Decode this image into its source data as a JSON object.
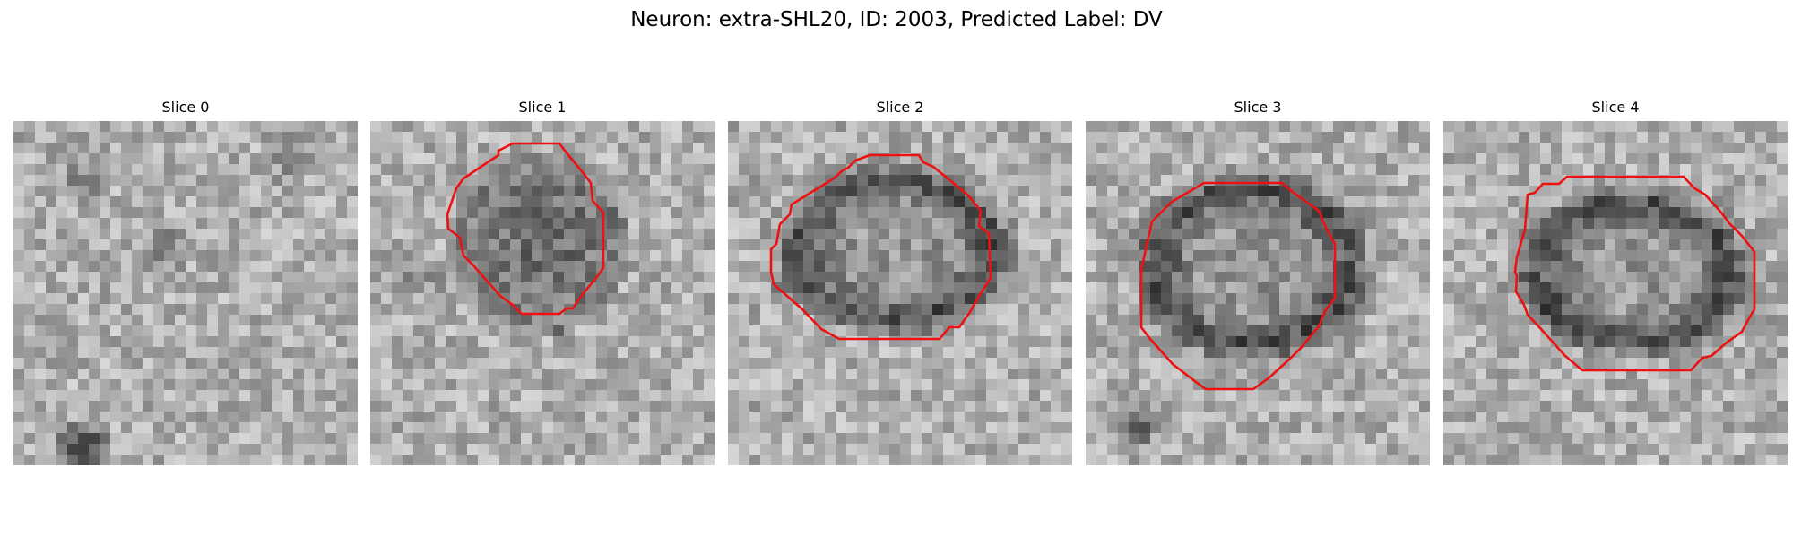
{
  "figure": {
    "title": "Neuron: extra-SHL20, ID: 2003, Predicted Label: DV"
  },
  "panels": [
    {
      "title": "Slice 0",
      "contour": false
    },
    {
      "title": "Slice 1",
      "contour": true
    },
    {
      "title": "Slice 2",
      "contour": true
    },
    {
      "title": "Slice 3",
      "contour": true
    },
    {
      "title": "Slice 4",
      "contour": true
    }
  ],
  "colors": {
    "contour": "#ee1111",
    "colormap": "grayscale"
  }
}
